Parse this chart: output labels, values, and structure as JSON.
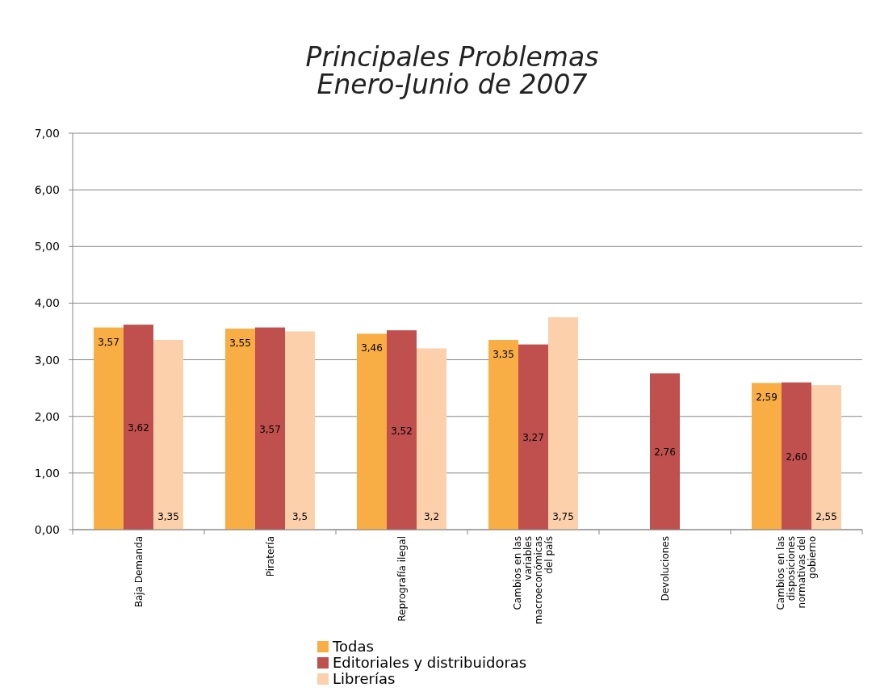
{
  "chart_data": {
    "type": "bar",
    "title": "Principales Problemas\nEnero-Junio de 2007",
    "categories": [
      "Baja Demanda",
      "Piratería",
      "Reprografía ilegal",
      "Cambios en las variables macroeconómicas del país",
      "Devoluciones",
      "Cambios en las disposiciones normativas del gobierno"
    ],
    "series": [
      {
        "name": "Todas",
        "color": "#f9ae45",
        "values": [
          3.57,
          3.55,
          3.46,
          3.35,
          null,
          2.59
        ],
        "value_labels": [
          "3,57",
          "3,55",
          "3,46",
          "3,35",
          null,
          "2,59"
        ]
      },
      {
        "name": "Editoriales y distribuidoras",
        "color": "#c0504d",
        "values": [
          3.62,
          3.57,
          3.52,
          3.27,
          2.76,
          2.6
        ],
        "value_labels": [
          "3,62",
          "3,57",
          "3,52",
          "3,27",
          "2,76",
          "2,60"
        ]
      },
      {
        "name": "Librerías",
        "color": "#fbd0aa",
        "values": [
          3.35,
          3.5,
          3.2,
          3.75,
          null,
          2.55
        ],
        "value_labels": [
          "3,35",
          "3,5",
          "3,2",
          "3,75",
          null,
          "2,55"
        ]
      }
    ],
    "ylim": [
      0,
      7
    ],
    "yticks": [
      {
        "value": 0,
        "label": "0,00"
      },
      {
        "value": 1,
        "label": "1,00"
      },
      {
        "value": 2,
        "label": "2,00"
      },
      {
        "value": 3,
        "label": "3,00"
      },
      {
        "value": 4,
        "label": "4,00"
      },
      {
        "value": 5,
        "label": "5,00"
      },
      {
        "value": 6,
        "label": "6,00"
      },
      {
        "value": 7,
        "label": "7,00"
      }
    ],
    "grid": "y",
    "legend": "bottom"
  }
}
